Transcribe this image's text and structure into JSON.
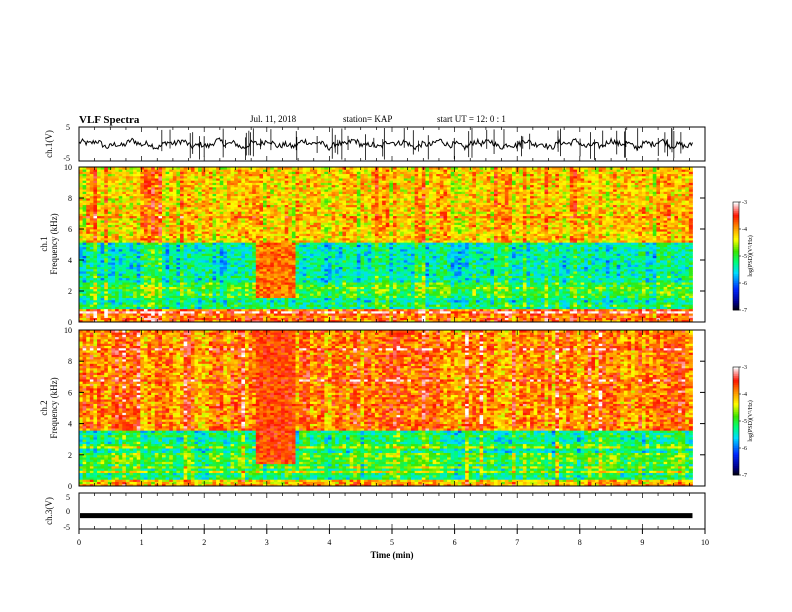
{
  "header": {
    "title": "VLF Spectra",
    "date": "Jul. 11, 2018",
    "station": "station= KAP",
    "start": "start UT =  12: 0  : 1"
  },
  "chart_data": [
    {
      "type": "line",
      "panel": "ch1-waveform",
      "ylabel": "ch.1(V)",
      "ylim": [
        -5,
        5
      ],
      "ytick_labels": [
        "5",
        "-5"
      ],
      "xlim": [
        0,
        10
      ],
      "color": "#000000"
    },
    {
      "type": "heatmap",
      "panel": "ch1-spectrogram",
      "ylabel_line1": "ch.1",
      "ylabel_line2": "Frequency (kHz)",
      "ylim": [
        0,
        10
      ],
      "ytick_labels": [
        "0",
        "2",
        "4",
        "6",
        "8",
        "10"
      ],
      "xlim": [
        0,
        9.8
      ],
      "colorbar": {
        "label": "log(PSD)(V²/Hz)",
        "range": [
          -7,
          -3
        ],
        "tick_labels": [
          "-3",
          "-4",
          "-5",
          "-6",
          "-7"
        ]
      },
      "bands": [
        {
          "f_min": 0,
          "f_max": 0.8,
          "level": -3.8
        },
        {
          "f_min": 0.8,
          "f_max": 1.6,
          "level": -5.3
        },
        {
          "f_min": 1.6,
          "f_max": 2.6,
          "level": -5.0
        },
        {
          "f_min": 2.6,
          "f_max": 5.2,
          "level": -5.4
        },
        {
          "f_min": 5.2,
          "f_max": 10,
          "level": -4.2
        }
      ],
      "event": {
        "t_start": 2.85,
        "t_end": 3.45,
        "f_min": 1.6,
        "f_max": 5.2,
        "level": -3.8
      }
    },
    {
      "type": "heatmap",
      "panel": "ch2-spectrogram",
      "ylabel_line1": "ch.2",
      "ylabel_line2": "Frequency (kHz)",
      "ylim": [
        0,
        10
      ],
      "ytick_labels": [
        "0",
        "2",
        "4",
        "6",
        "8",
        "10"
      ],
      "xlim": [
        0,
        9.8
      ],
      "colorbar": {
        "label": "log(PSD)(V²/Hz)",
        "range": [
          -7,
          -3
        ],
        "tick_labels": [
          "-3",
          "-4",
          "-5",
          "-6",
          "-7"
        ]
      },
      "bands": [
        {
          "f_min": 0,
          "f_max": 0.5,
          "level": -4.2
        },
        {
          "f_min": 0.5,
          "f_max": 1.5,
          "level": -5.2
        },
        {
          "f_min": 1.5,
          "f_max": 2.2,
          "level": -4.9
        },
        {
          "f_min": 2.2,
          "f_max": 3.6,
          "level": -5.3
        },
        {
          "f_min": 3.6,
          "f_max": 10,
          "level": -3.9
        }
      ],
      "event": {
        "t_start": 2.85,
        "t_end": 3.45,
        "f_min": 1.5,
        "f_max": 10,
        "level": -3.6
      }
    },
    {
      "type": "line",
      "panel": "ch3-waveform",
      "ylabel": "ch.3(V)",
      "ylim": [
        -5,
        5
      ],
      "ytick_labels": [
        "5",
        "0",
        "-5"
      ],
      "xlim": [
        0,
        10
      ],
      "xlabel": "Time (min)",
      "xtick_labels": [
        "0",
        "1",
        "2",
        "3",
        "4",
        "5",
        "6",
        "7",
        "8",
        "9",
        "10"
      ],
      "constant_value": -1.3,
      "color": "#000000"
    }
  ]
}
